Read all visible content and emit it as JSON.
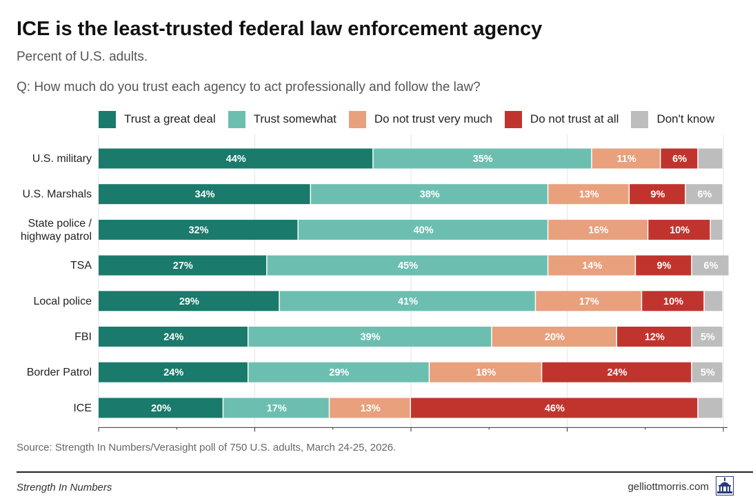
{
  "header": {
    "title": "ICE is the least-trusted federal law enforcement agency",
    "subtitle": "Percent of U.S. adults.",
    "question": "Q: How much do you trust each agency to act professionally and follow the law?"
  },
  "footer": {
    "source": "Source: Strength In Numbers/Verasight poll of 750 U.S. adults, March 24-25, 2026.",
    "brand_left": "Strength In Numbers",
    "brand_right": "gelliottmorris.com",
    "logo_icon": "capitol-building-icon"
  },
  "chart_data": {
    "type": "bar",
    "orientation": "horizontal",
    "stacked": true,
    "title": "ICE is the least-trusted federal law enforcement agency",
    "subtitle": "Percent of U.S. adults.",
    "categories": [
      [
        "U.S. military"
      ],
      [
        "U.S. Marshals"
      ],
      [
        "State police /",
        "highway patrol"
      ],
      [
        "TSA"
      ],
      [
        "Local police"
      ],
      [
        "FBI"
      ],
      [
        "Border Patrol"
      ],
      [
        "ICE"
      ]
    ],
    "series": [
      {
        "name": "Trust a great deal",
        "color": "#1a7a6b",
        "label_color": "#ffffff",
        "values": [
          44,
          34,
          32,
          27,
          29,
          24,
          24,
          20
        ]
      },
      {
        "name": "Trust somewhat",
        "color": "#6cbfb0",
        "label_color": "#ffffff",
        "values": [
          35,
          38,
          40,
          45,
          41,
          39,
          29,
          17
        ]
      },
      {
        "name": "Do not trust very much",
        "color": "#e8a07d",
        "label_color": "#ffffff",
        "values": [
          11,
          13,
          16,
          14,
          17,
          20,
          18,
          13
        ]
      },
      {
        "name": "Do not trust at all",
        "color": "#c1342e",
        "label_color": "#ffffff",
        "values": [
          6,
          9,
          10,
          9,
          10,
          12,
          24,
          46
        ]
      },
      {
        "name": "Don't know",
        "color": "#bdbdbd",
        "label_color": "#ffffff",
        "values": [
          4,
          6,
          2,
          6,
          3,
          5,
          5,
          4
        ]
      }
    ],
    "data_labels": [
      [
        "44%",
        "35%",
        "11%",
        "6%",
        ""
      ],
      [
        "34%",
        "38%",
        "13%",
        "9%",
        "6%"
      ],
      [
        "32%",
        "40%",
        "16%",
        "10%",
        ""
      ],
      [
        "27%",
        "45%",
        "14%",
        "9%",
        "6%"
      ],
      [
        "29%",
        "41%",
        "17%",
        "10%",
        ""
      ],
      [
        "24%",
        "39%",
        "20%",
        "12%",
        "5%"
      ],
      [
        "24%",
        "29%",
        "18%",
        "24%",
        "5%"
      ],
      [
        "20%",
        "17%",
        "13%",
        "46%",
        ""
      ]
    ],
    "xlim": [
      0,
      100
    ],
    "legend_position": "top",
    "grid": true
  }
}
